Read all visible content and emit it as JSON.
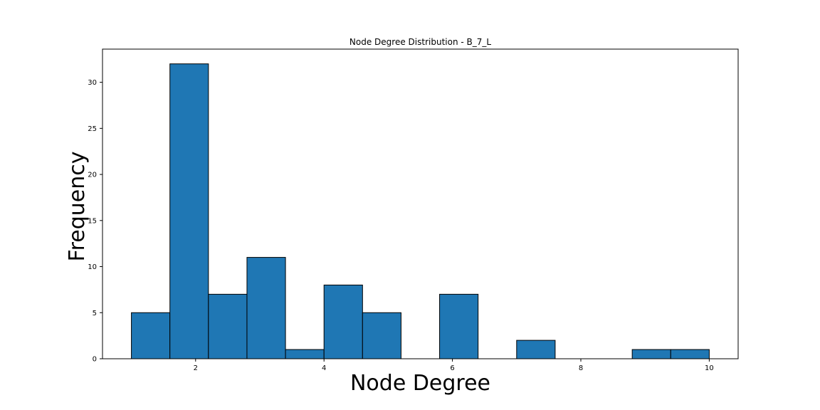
{
  "chart_data": {
    "type": "bar",
    "title": "Node Degree Distribution - B_7_L",
    "xlabel": "Node Degree",
    "ylabel": "Frequency",
    "bar_color": "#1f77b4",
    "edge_color": "#000000",
    "bins": [
      {
        "start": 1.0,
        "end": 1.6,
        "count": 5
      },
      {
        "start": 1.6,
        "end": 2.2,
        "count": 32
      },
      {
        "start": 2.2,
        "end": 2.8,
        "count": 7
      },
      {
        "start": 2.8,
        "end": 3.4,
        "count": 11
      },
      {
        "start": 3.4,
        "end": 4.0,
        "count": 1
      },
      {
        "start": 4.0,
        "end": 4.6,
        "count": 8
      },
      {
        "start": 4.6,
        "end": 5.2,
        "count": 5
      },
      {
        "start": 5.2,
        "end": 5.8,
        "count": 0
      },
      {
        "start": 5.8,
        "end": 6.4,
        "count": 7
      },
      {
        "start": 6.4,
        "end": 7.0,
        "count": 0
      },
      {
        "start": 7.0,
        "end": 7.6,
        "count": 2
      },
      {
        "start": 7.6,
        "end": 8.2,
        "count": 0
      },
      {
        "start": 8.2,
        "end": 8.8,
        "count": 0
      },
      {
        "start": 8.8,
        "end": 9.4,
        "count": 1
      },
      {
        "start": 9.4,
        "end": 10.0,
        "count": 1
      }
    ],
    "xlim": [
      0.55,
      10.45
    ],
    "ylim": [
      0,
      33.6
    ],
    "xticks": [
      2,
      4,
      6,
      8,
      10
    ],
    "yticks": [
      0,
      5,
      10,
      15,
      20,
      25,
      30
    ],
    "grid": false
  }
}
